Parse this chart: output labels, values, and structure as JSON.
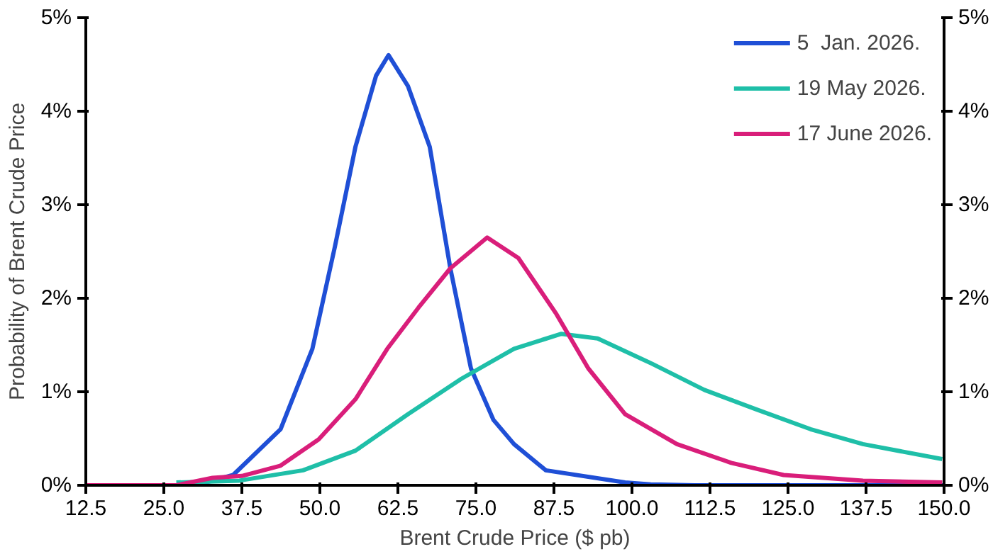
{
  "chart_data": {
    "type": "line",
    "xlabel": "Brent Crude Price ($ pb)",
    "ylabel": "Probability of Brent Crude Price",
    "xlim": [
      12.5,
      150
    ],
    "xticks": [
      {
        "value": 12.5,
        "label": "12.5"
      },
      {
        "value": 25,
        "label": "25.0"
      },
      {
        "value": 37.5,
        "label": "37.5"
      },
      {
        "value": 50,
        "label": "50.0"
      },
      {
        "value": 62.5,
        "label": "62.5"
      },
      {
        "value": 75,
        "label": "75.0"
      },
      {
        "value": 87.5,
        "label": "87.5"
      },
      {
        "value": 100,
        "label": "100.0"
      },
      {
        "value": 112.5,
        "label": "112.5"
      },
      {
        "value": 125,
        "label": "125.0"
      },
      {
        "value": 137.5,
        "label": "137.5"
      },
      {
        "value": 150,
        "label": "150.0"
      }
    ],
    "ylim": [
      0,
      5
    ],
    "yticks": [
      {
        "value": 0,
        "label": "0%"
      },
      {
        "value": 1,
        "label": "1%"
      },
      {
        "value": 2,
        "label": "2%"
      },
      {
        "value": 3,
        "label": "3%"
      },
      {
        "value": 4,
        "label": "4%"
      },
      {
        "value": 5,
        "label": "5%"
      }
    ],
    "y2lim": [
      0,
      5
    ],
    "y2ticks": [
      {
        "value": 0,
        "label": "0%"
      },
      {
        "value": 1,
        "label": "1%"
      },
      {
        "value": 2,
        "label": "2%"
      },
      {
        "value": 3,
        "label": "3%"
      },
      {
        "value": 4,
        "label": "4%"
      },
      {
        "value": 5,
        "label": "5%"
      }
    ],
    "grid": false,
    "legend": "top right",
    "marker": "none",
    "line_style": "solid",
    "series": [
      {
        "name": "5  Jan. 2026.",
        "color": "#1f4fd6",
        "x": [
          12.5,
          30,
          36.1,
          43.7,
          48.8,
          52.4,
          55.7,
          59,
          61,
          64.1,
          67.6,
          70.9,
          74.2,
          77.8,
          81.1,
          86.2,
          98.9,
          103,
          110,
          150
        ],
        "values": [
          0,
          0,
          0.11,
          0.6,
          1.46,
          2.55,
          3.62,
          4.38,
          4.6,
          4.27,
          3.62,
          2.32,
          1.25,
          0.7,
          0.44,
          0.16,
          0.03,
          0.01,
          0,
          0
        ]
      },
      {
        "name": "19 May 2026.",
        "color": "#1fbfa8",
        "x": [
          27,
          37.1,
          47.3,
          55.7,
          64.1,
          72.7,
          81.1,
          88.7,
          94.5,
          103.2,
          111.6,
          120,
          128.6,
          137,
          149.7
        ],
        "values": [
          0.03,
          0.05,
          0.16,
          0.37,
          0.76,
          1.14,
          1.46,
          1.62,
          1.57,
          1.3,
          1.02,
          0.81,
          0.6,
          0.44,
          0.28
        ]
      },
      {
        "name": "17 June 2026.",
        "color": "#d91e7a",
        "x": [
          12.5,
          27,
          32.8,
          37.5,
          43.7,
          49.8,
          55.7,
          60.8,
          65.8,
          70.9,
          76.8,
          81.8,
          87.9,
          93,
          98.9,
          107.2,
          115.9,
          124.3,
          137,
          149.7
        ],
        "values": [
          0,
          0,
          0.08,
          0.1,
          0.21,
          0.49,
          0.92,
          1.46,
          1.9,
          2.32,
          2.65,
          2.43,
          1.83,
          1.25,
          0.76,
          0.44,
          0.24,
          0.11,
          0.05,
          0.03
        ]
      }
    ]
  }
}
